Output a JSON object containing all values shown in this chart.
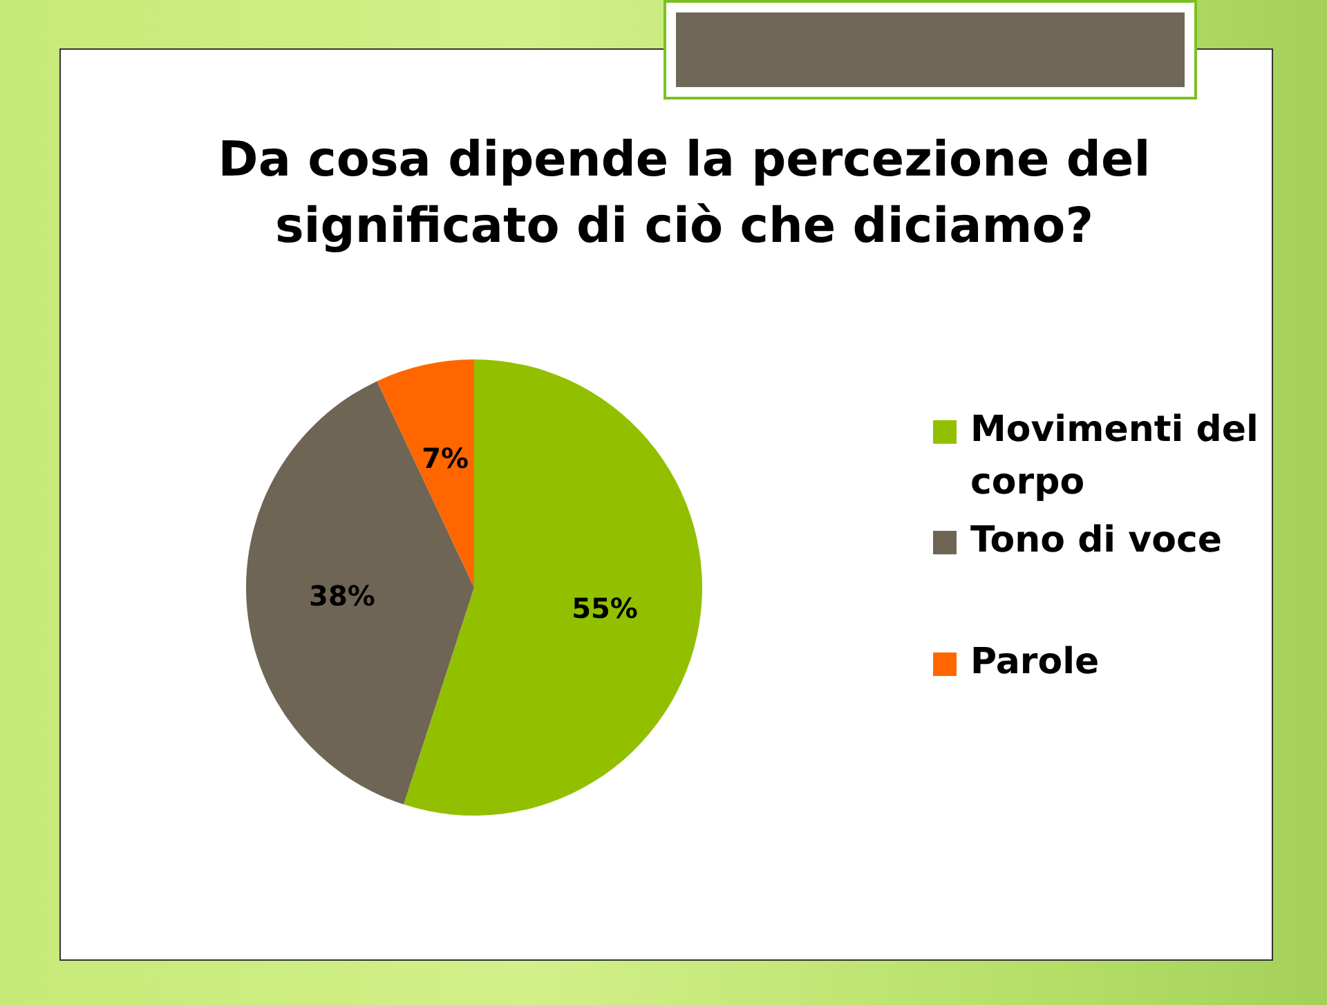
{
  "chart_data": {
    "type": "pie",
    "title": "Da cosa dipende la percezione del significato di ciò che diciamo?",
    "categories": [
      "Movimenti del corpo",
      "Tono di voce",
      "Parole"
    ],
    "values": [
      55,
      38,
      7
    ],
    "colors": [
      "#92c000",
      "#6f6555",
      "#ff6600"
    ],
    "value_labels": [
      "55%",
      "38%",
      "7%"
    ],
    "legend": "right"
  }
}
